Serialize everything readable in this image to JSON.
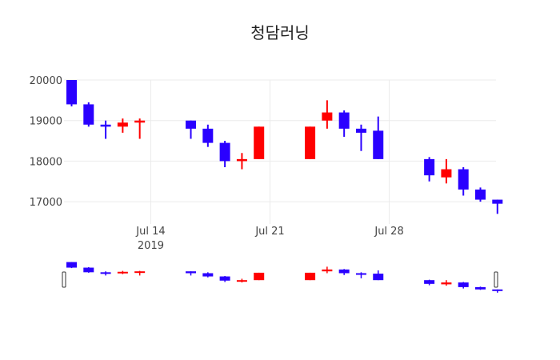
{
  "chart_data": {
    "type": "candlestick",
    "title": "청담러닝",
    "up_color": "#ff0000",
    "down_color": "#2a00ff",
    "xlabel": "",
    "ylabel": "",
    "ylim": [
      16450,
      20000
    ],
    "x_range": [
      "2019-07-09",
      "2019-08-02"
    ],
    "y_ticks": [
      "20000",
      "19000",
      "18000",
      "17000"
    ],
    "x_ticks": [
      {
        "date": "2019-07-14",
        "label": "Jul 14",
        "sublabel": "2019"
      },
      {
        "date": "2019-07-21",
        "label": "Jul 21",
        "sublabel": ""
      },
      {
        "date": "2019-07-28",
        "label": "Jul 28",
        "sublabel": ""
      }
    ],
    "grid": true,
    "range_slider": true,
    "candles": [
      {
        "date": "2019-07-09",
        "open": 20000,
        "high": 20000,
        "low": 19350,
        "close": 19400
      },
      {
        "date": "2019-07-10",
        "open": 19400,
        "high": 19450,
        "low": 18850,
        "close": 18900
      },
      {
        "date": "2019-07-11",
        "open": 18900,
        "high": 19000,
        "low": 18550,
        "close": 18850
      },
      {
        "date": "2019-07-12",
        "open": 18850,
        "high": 19050,
        "low": 18700,
        "close": 18950
      },
      {
        "date": "2019-07-13",
        "open": 18950,
        "high": 19050,
        "low": 18550,
        "close": 19000
      },
      {
        "date": "2019-07-16",
        "open": 19000,
        "high": 19000,
        "low": 18550,
        "close": 18800
      },
      {
        "date": "2019-07-17",
        "open": 18800,
        "high": 18900,
        "low": 18350,
        "close": 18450
      },
      {
        "date": "2019-07-18",
        "open": 18450,
        "high": 18500,
        "low": 17850,
        "close": 18000
      },
      {
        "date": "2019-07-19",
        "open": 18000,
        "high": 18200,
        "low": 17800,
        "close": 18050
      },
      {
        "date": "2019-07-20",
        "open": 18050,
        "high": 18850,
        "low": 18050,
        "close": 18850
      },
      {
        "date": "2019-07-23",
        "open": 18050,
        "high": 18850,
        "low": 18050,
        "close": 18850
      },
      {
        "date": "2019-07-24",
        "open": 19000,
        "high": 19500,
        "low": 18800,
        "close": 19200
      },
      {
        "date": "2019-07-25",
        "open": 19200,
        "high": 19250,
        "low": 18600,
        "close": 18800
      },
      {
        "date": "2019-07-26",
        "open": 18800,
        "high": 18900,
        "low": 18250,
        "close": 18700
      },
      {
        "date": "2019-07-27",
        "open": 18750,
        "high": 19100,
        "low": 18050,
        "close": 18050
      },
      {
        "date": "2019-07-30",
        "open": 18050,
        "high": 18100,
        "low": 17500,
        "close": 17650
      },
      {
        "date": "2019-07-31",
        "open": 17600,
        "high": 18050,
        "low": 17450,
        "close": 17800
      },
      {
        "date": "2019-08-01",
        "open": 17800,
        "high": 17850,
        "low": 17150,
        "close": 17300
      },
      {
        "date": "2019-08-02",
        "open": 17300,
        "high": 17350,
        "low": 17000,
        "close": 17050
      },
      {
        "date": "2019-08-03",
        "open": 17050,
        "high": 17050,
        "low": 16700,
        "close": 16950
      }
    ]
  }
}
